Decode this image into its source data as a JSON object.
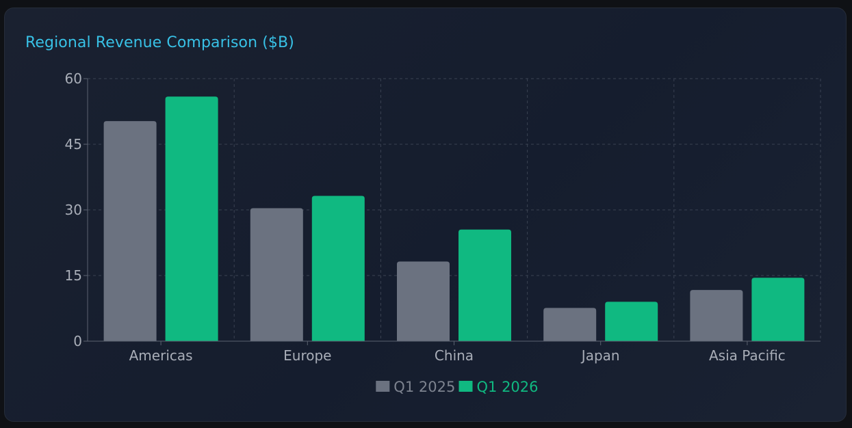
{
  "chart_data": {
    "type": "bar",
    "title": "Regional Revenue Comparison ($B)",
    "categories": [
      "Americas",
      "Europe",
      "China",
      "Japan",
      "Asia Pacific"
    ],
    "series": [
      {
        "name": "Q1 2025",
        "color": "#6b7280",
        "values": [
          50.3,
          30.4,
          18.2,
          7.6,
          11.7
        ]
      },
      {
        "name": "Q1 2026",
        "color": "#10b981",
        "values": [
          55.9,
          33.2,
          25.5,
          9.0,
          14.5
        ]
      }
    ],
    "yticks": [
      0,
      15,
      30,
      45,
      60
    ],
    "ylim": [
      0,
      60
    ],
    "grid": true,
    "legend_position": "bottom-center"
  }
}
